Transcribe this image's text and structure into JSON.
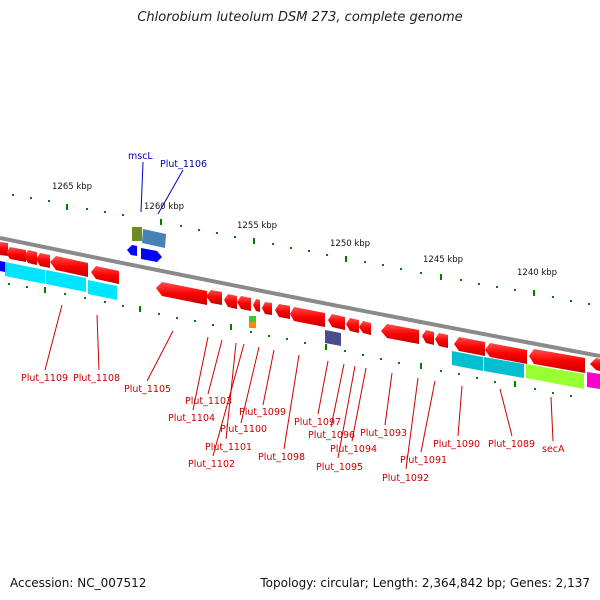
{
  "title": "Chlorobium luteolum DSM 273, complete genome",
  "accession_text": "Accession: NC_007512",
  "topology_text": "Topology: circular; Length: 2,364,842 bp; Genes: 2,137",
  "scale_labels": [
    "1265 kbp",
    "1260 kbp",
    "1255 kbp",
    "1250 kbp",
    "1245 kbp",
    "1240 kbp"
  ],
  "gene_labels_top": [
    "mscL",
    "Plut_1106"
  ],
  "gene_labels_bottom": [
    "Plut_1109",
    "Plut_1108",
    "Plut_1105",
    "Plut_1103",
    "Plut_1104",
    "Plut_1101",
    "Plut_1102",
    "Plut_1100",
    "Plut_1099",
    "Plut_1098",
    "Plut_1097",
    "Plut_1096",
    "Plut_1095",
    "Plut_1094",
    "Plut_1093",
    "Plut_1092",
    "Plut_1091",
    "Plut_1090",
    "Plut_1089",
    "secA"
  ],
  "colors": {
    "backbone": "#8a8a8a",
    "cds": "#ff0000",
    "cog_blue": "#0000ff",
    "cog_cyan": "#00e5ff",
    "cog_teal": "#00c0d0",
    "cog_green": "#99ff33",
    "cog_magenta": "#ff00cc",
    "cog_olive": "#6b8e23",
    "cog_steel": "#4682b4",
    "cog_slate": "#4b4b8f",
    "cog_orange": "#ff8c00",
    "cog_lime": "#33cc33",
    "tick": "#008000",
    "label_forward": "#0000aa",
    "label_reverse": "#cc0000"
  }
}
